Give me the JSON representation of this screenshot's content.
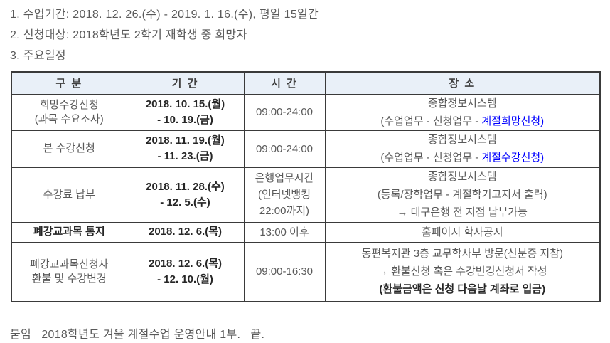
{
  "intro": {
    "line1": "1. 수업기간: 2018. 12. 26.(수) - 2019. 1. 16.(수), 평일 15일간",
    "line2": "2. 신청대상: 2018학년도 2학기 재학생 중 희망자",
    "line3": "3. 주요일정"
  },
  "table": {
    "headers": {
      "category": "구 분",
      "period": "기 간",
      "time": "시 간",
      "place": "장 소"
    },
    "rows": [
      {
        "category_lines": [
          "희망수강신청",
          "(과목 수요조사)"
        ],
        "period_lines": [
          "2018. 10. 15.(월)",
          "- 10. 19.(금)"
        ],
        "time_lines": [
          "09:00-24:00"
        ],
        "place": {
          "line1": "종합정보시스템",
          "line2_prefix": "(수업업무 - 신청업무 - ",
          "line2_link": "계절희망신청)"
        }
      },
      {
        "category_lines": [
          "본 수강신청"
        ],
        "period_lines": [
          "2018. 11. 19.(월)",
          "- 11. 23.(금)"
        ],
        "time_lines": [
          "09:00-24:00"
        ],
        "place": {
          "line1": "종합정보시스템",
          "line2_prefix": "(수업업무 - 신청업무 - ",
          "line2_link": "계절수강신청)"
        }
      },
      {
        "category_lines": [
          "수강료 납부"
        ],
        "period_lines": [
          "2018. 11. 28.(수)",
          "- 12. 5.(수)"
        ],
        "time_lines": [
          "은행업무시간",
          "(인터넷뱅킹",
          "22:00까지)"
        ],
        "place_lines": [
          "종합정보시스템",
          "(등록/장학업무 - 계절학기고지서 출력)",
          "→ 대구은행 전 지점 납부가능"
        ]
      },
      {
        "category_lines": [
          "폐강교과목 통지"
        ],
        "period_lines": [
          "2018. 12. 6.(목)"
        ],
        "time_lines": [
          "13:00 이후"
        ],
        "place_lines": [
          "홈페이지 학사공지"
        ]
      },
      {
        "category_lines": [
          "폐강교과목신청자",
          "환불 및 수강변경"
        ],
        "period_lines": [
          "2018. 12. 6.(목)",
          "- 12. 10.(월)"
        ],
        "time_lines": [
          "09:00-16:30"
        ],
        "place_lines": [
          "동편복지관 3층 교무학사부 방문(신분증 지참)",
          "→ 환불신청 혹은 수강변경신청서 작성"
        ],
        "place_bold_line": "(환불금액은 신청 다음날 계좌로 입금)"
      }
    ]
  },
  "footer": "붙임   2018학년도 겨울 계절수업 운영안내 1부.   끝.",
  "colors": {
    "header_bg": "#E9F0F8",
    "link_blue": "#0000FF",
    "body_text": "#595959",
    "bold_text": "#262626",
    "border": "#3A3A3A"
  }
}
